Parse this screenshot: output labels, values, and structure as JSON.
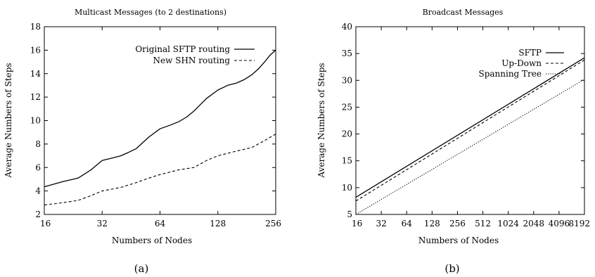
{
  "chart_data": [
    {
      "type": "line",
      "title": "Multicast Messages (to 2 destinations)",
      "xlabel": "Numbers of Nodes",
      "ylabel": "Average Numbers of Steps",
      "xscale": "log2",
      "xlim": [
        16,
        256
      ],
      "ylim": [
        2,
        18
      ],
      "xticks": [
        "16",
        "32",
        "64",
        "128",
        "256"
      ],
      "yticks": [
        "2",
        "4",
        "6",
        "8",
        "10",
        "12",
        "14",
        "16",
        "18"
      ],
      "legend_position": "top-right",
      "grid": false,
      "series": [
        {
          "name": "Original SFTP routing",
          "style": "solid",
          "x": [
            16,
            20,
            24,
            28,
            32,
            36,
            40,
            44,
            48,
            56,
            64,
            72,
            80,
            88,
            96,
            112,
            128,
            144,
            160,
            176,
            192,
            208,
            224,
            240,
            256
          ],
          "y": [
            4.35,
            4.8,
            5.1,
            5.8,
            6.6,
            6.8,
            7.0,
            7.3,
            7.6,
            8.6,
            9.3,
            9.6,
            9.9,
            10.3,
            10.8,
            11.9,
            12.6,
            13.0,
            13.2,
            13.5,
            13.9,
            14.4,
            15.0,
            15.6,
            16.0
          ]
        },
        {
          "name": "New SHN routing",
          "style": "dashed",
          "x": [
            16,
            20,
            24,
            28,
            32,
            40,
            48,
            56,
            64,
            72,
            80,
            96,
            112,
            128,
            160,
            192,
            224,
            256
          ],
          "y": [
            2.8,
            3.0,
            3.2,
            3.6,
            4.0,
            4.3,
            4.7,
            5.1,
            5.4,
            5.6,
            5.8,
            6.0,
            6.6,
            7.0,
            7.4,
            7.7,
            8.3,
            8.85
          ]
        }
      ]
    },
    {
      "type": "line",
      "title": "Broadcast Messages",
      "xlabel": "Numbers of Nodes",
      "ylabel": "Average Numbers of Steps",
      "xscale": "log2",
      "xlim": [
        16,
        8192
      ],
      "ylim": [
        5,
        40
      ],
      "xticks": [
        "16",
        "32",
        "64",
        "128",
        "256",
        "512",
        "1024",
        "2048",
        "4096",
        "8192"
      ],
      "yticks": [
        "5",
        "10",
        "15",
        "20",
        "25",
        "30",
        "35",
        "40"
      ],
      "legend_position": "top-right",
      "grid": false,
      "series": [
        {
          "name": "SFTP",
          "style": "solid",
          "x": [
            16,
            8192
          ],
          "y": [
            8.2,
            34.2
          ]
        },
        {
          "name": "Up-Down",
          "style": "dashed",
          "x": [
            16,
            8192
          ],
          "y": [
            7.5,
            33.8
          ]
        },
        {
          "name": "Spanning Tree",
          "style": "dotted",
          "x": [
            16,
            8192
          ],
          "y": [
            5.0,
            30.2
          ]
        }
      ]
    }
  ],
  "captions": [
    "(a)",
    "(b)"
  ]
}
